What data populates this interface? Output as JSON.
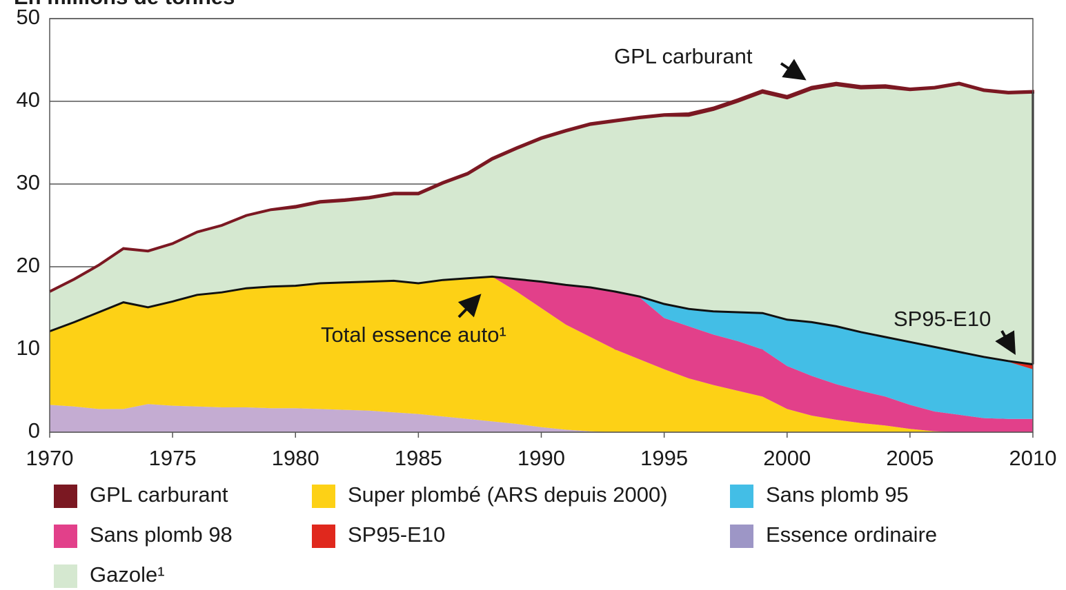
{
  "chart_data": {
    "type": "stacked-area",
    "ylabel": "En millions de tonnes",
    "x": [
      1970,
      1971,
      1972,
      1973,
      1974,
      1975,
      1976,
      1977,
      1978,
      1979,
      1980,
      1981,
      1982,
      1983,
      1984,
      1985,
      1986,
      1987,
      1988,
      1989,
      1990,
      1991,
      1992,
      1993,
      1994,
      1995,
      1996,
      1997,
      1998,
      1999,
      2000,
      2001,
      2002,
      2003,
      2004,
      2005,
      2006,
      2007,
      2008,
      2009,
      2010
    ],
    "xlim": [
      1970,
      2010
    ],
    "xticks": [
      1970,
      1975,
      1980,
      1985,
      1990,
      1995,
      2000,
      2005,
      2010
    ],
    "ylim": [
      0,
      50
    ],
    "yticks": [
      0,
      10,
      20,
      30,
      40,
      50
    ],
    "grid": true,
    "series": [
      {
        "name": "Essence ordinaire",
        "color": "#c4acd2",
        "values": [
          3.3,
          3.1,
          2.8,
          2.8,
          3.4,
          3.2,
          3.1,
          3.0,
          3.0,
          2.9,
          2.9,
          2.8,
          2.7,
          2.6,
          2.4,
          2.2,
          1.9,
          1.6,
          1.3,
          1.0,
          0.6,
          0.3,
          0.1,
          0,
          0,
          0,
          0,
          0,
          0,
          0,
          0,
          0,
          0,
          0,
          0,
          0,
          0,
          0,
          0,
          0,
          0
        ]
      },
      {
        "name": "Super plombé (ARS depuis 2000)",
        "color": "#fdd116",
        "values": [
          8.9,
          10.2,
          11.7,
          12.9,
          11.7,
          12.6,
          13.5,
          13.9,
          14.4,
          14.7,
          14.8,
          15.2,
          15.4,
          15.6,
          15.9,
          15.8,
          16.5,
          17.0,
          17.5,
          16.0,
          14.4,
          12.7,
          11.4,
          10.0,
          8.8,
          7.6,
          6.5,
          5.7,
          5.0,
          4.3,
          2.8,
          2.0,
          1.5,
          1.1,
          0.8,
          0.4,
          0.1,
          0,
          0,
          0,
          0
        ]
      },
      {
        "name": "Sans plomb 98",
        "color": "#e2408a",
        "values": [
          0,
          0,
          0,
          0,
          0,
          0,
          0,
          0,
          0,
          0,
          0,
          0,
          0,
          0,
          0,
          0,
          0,
          0,
          0,
          1.5,
          3.2,
          4.8,
          6.0,
          7.0,
          7.5,
          6.2,
          6.3,
          6.1,
          6.0,
          5.7,
          5.2,
          4.8,
          4.3,
          3.9,
          3.5,
          2.9,
          2.4,
          2.1,
          1.7,
          1.6,
          1.6
        ]
      },
      {
        "name": "Sans plomb 95",
        "color": "#43bee6",
        "values": [
          0,
          0,
          0,
          0,
          0,
          0,
          0,
          0,
          0,
          0,
          0,
          0,
          0,
          0,
          0,
          0,
          0,
          0,
          0,
          0,
          0,
          0,
          0,
          0,
          0.1,
          1.7,
          2.1,
          2.8,
          3.5,
          4.4,
          5.6,
          6.5,
          7.0,
          7.1,
          7.2,
          7.6,
          7.8,
          7.6,
          7.4,
          6.9,
          6.0
        ]
      },
      {
        "name": "SP95-E10",
        "color": "#e0281d",
        "values": [
          0,
          0,
          0,
          0,
          0,
          0,
          0,
          0,
          0,
          0,
          0,
          0,
          0,
          0,
          0,
          0,
          0,
          0,
          0,
          0,
          0,
          0,
          0,
          0,
          0,
          0,
          0,
          0,
          0,
          0,
          0,
          0,
          0,
          0,
          0,
          0,
          0,
          0,
          0,
          0.1,
          0.6
        ]
      },
      {
        "name": "Gazole¹",
        "color": "#d5e8d0",
        "values": [
          4.8,
          5.2,
          5.7,
          6.5,
          6.8,
          7.0,
          7.6,
          8.1,
          8.8,
          9.3,
          9.5,
          9.8,
          9.9,
          10.1,
          10.5,
          10.8,
          11.7,
          12.6,
          14.2,
          15.8,
          17.3,
          18.6,
          19.7,
          20.6,
          21.6,
          22.8,
          23.4,
          24.4,
          25.5,
          26.7,
          26.8,
          28.2,
          29.2,
          29.5,
          30.2,
          30.5,
          31.3,
          32.4,
          32.2,
          32.4,
          32.9
        ]
      },
      {
        "name": "GPL carburant",
        "color": "#7b1822",
        "values": [
          0,
          0,
          0,
          0,
          0,
          0,
          0,
          0,
          0,
          0,
          0.1,
          0.1,
          0.1,
          0.1,
          0.1,
          0.1,
          0.1,
          0.1,
          0.1,
          0.1,
          0.1,
          0.1,
          0.1,
          0.1,
          0.1,
          0.1,
          0.2,
          0.2,
          0.2,
          0.2,
          0.2,
          0.2,
          0.2,
          0.2,
          0.2,
          0.1,
          0.1,
          0.1,
          0.1,
          0.1,
          0.1
        ]
      }
    ],
    "annotations": [
      "GPL carburant",
      "Total essence auto¹",
      "SP95-E10"
    ]
  }
}
